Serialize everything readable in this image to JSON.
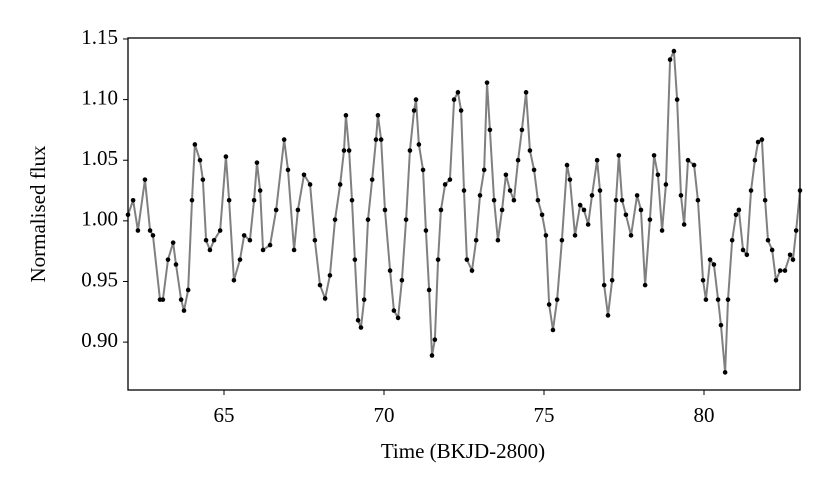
{
  "chart_data": {
    "type": "line",
    "xlabel": "Time (BKJD-2800)",
    "ylabel": "Normalised flux",
    "line_color": "#808080",
    "marker_color": "#000000",
    "xlim": [
      62.0,
      83.0
    ],
    "ylim": [
      0.8605,
      1.1508
    ],
    "xticks": [
      65,
      70,
      75,
      80
    ],
    "yticks": [
      {
        "value": 0.9,
        "label": "0.90"
      },
      0.95,
      {
        "value": 1.0,
        "label": "1.00"
      },
      1.05,
      {
        "value": 1.1,
        "label": "1.10"
      },
      1.15
    ],
    "x": [
      62.0,
      62.16,
      62.31,
      62.53,
      62.69,
      62.78,
      63.0,
      63.09,
      63.25,
      63.41,
      63.5,
      63.66,
      63.75,
      63.88,
      64.0,
      64.09,
      64.25,
      64.34,
      64.44,
      64.56,
      64.69,
      64.88,
      65.06,
      65.16,
      65.31,
      65.5,
      65.63,
      65.81,
      65.94,
      66.03,
      66.13,
      66.22,
      66.44,
      66.63,
      66.88,
      67.0,
      67.19,
      67.31,
      67.5,
      67.69,
      67.84,
      68.0,
      68.16,
      68.31,
      68.47,
      68.63,
      68.75,
      68.81,
      68.91,
      69.0,
      69.09,
      69.19,
      69.28,
      69.38,
      69.5,
      69.63,
      69.75,
      69.81,
      69.91,
      70.03,
      70.19,
      70.31,
      70.44,
      70.56,
      70.69,
      70.81,
      70.94,
      71.0,
      71.09,
      71.22,
      71.31,
      71.41,
      71.5,
      71.59,
      71.69,
      71.78,
      71.91,
      72.06,
      72.19,
      72.31,
      72.41,
      72.5,
      72.59,
      72.75,
      72.88,
      73.0,
      73.13,
      73.22,
      73.31,
      73.44,
      73.56,
      73.69,
      73.81,
      73.94,
      74.06,
      74.19,
      74.31,
      74.44,
      74.56,
      74.69,
      74.81,
      74.94,
      75.06,
      75.16,
      75.28,
      75.41,
      75.56,
      75.72,
      75.81,
      75.97,
      76.13,
      76.25,
      76.38,
      76.5,
      76.66,
      76.75,
      76.88,
      77.0,
      77.13,
      77.25,
      77.34,
      77.44,
      77.56,
      77.72,
      77.91,
      78.03,
      78.16,
      78.31,
      78.44,
      78.56,
      78.69,
      78.81,
      78.94,
      79.06,
      79.16,
      79.28,
      79.38,
      79.5,
      79.69,
      79.81,
      79.97,
      80.06,
      80.19,
      80.31,
      80.44,
      80.53,
      80.66,
      80.75,
      80.88,
      81.0,
      81.09,
      81.22,
      81.34,
      81.47,
      81.59,
      81.69,
      81.81,
      81.91,
      82.0,
      82.13,
      82.25,
      82.38,
      82.53,
      82.69,
      82.78,
      82.88,
      83.0
    ],
    "values": [
      1.005,
      1.017,
      0.992,
      1.034,
      0.992,
      0.988,
      0.935,
      0.935,
      0.968,
      0.982,
      0.964,
      0.935,
      0.926,
      0.943,
      1.017,
      1.063,
      1.05,
      1.034,
      0.984,
      0.976,
      0.984,
      0.992,
      1.053,
      1.017,
      0.951,
      0.968,
      0.988,
      0.984,
      1.017,
      1.048,
      1.025,
      0.976,
      0.98,
      1.009,
      1.067,
      1.042,
      0.976,
      1.009,
      1.038,
      1.03,
      0.984,
      0.947,
      0.936,
      0.955,
      1.001,
      1.03,
      1.058,
      1.087,
      1.058,
      1.017,
      0.968,
      0.918,
      0.912,
      0.935,
      1.001,
      1.034,
      1.067,
      1.087,
      1.067,
      1.009,
      0.959,
      0.926,
      0.92,
      0.951,
      1.001,
      1.058,
      1.091,
      1.1,
      1.063,
      1.042,
      0.992,
      0.943,
      0.889,
      0.902,
      0.968,
      1.009,
      1.03,
      1.034,
      1.1,
      1.106,
      1.091,
      1.025,
      0.968,
      0.959,
      0.984,
      1.021,
      1.042,
      1.114,
      1.075,
      1.017,
      0.984,
      1.009,
      1.038,
      1.025,
      1.017,
      1.05,
      1.075,
      1.106,
      1.058,
      1.042,
      1.017,
      1.005,
      0.988,
      0.931,
      0.91,
      0.935,
      0.984,
      1.046,
      1.034,
      0.988,
      1.013,
      1.009,
      0.997,
      1.021,
      1.05,
      1.025,
      0.947,
      0.922,
      0.951,
      1.017,
      1.054,
      1.017,
      1.005,
      0.988,
      1.021,
      1.009,
      0.947,
      1.001,
      1.054,
      1.038,
      0.992,
      1.03,
      1.133,
      1.14,
      1.1,
      1.021,
      0.997,
      1.05,
      1.046,
      1.017,
      0.951,
      0.935,
      0.968,
      0.964,
      0.935,
      0.914,
      0.875,
      0.935,
      0.984,
      1.005,
      1.009,
      0.976,
      0.972,
      1.025,
      1.05,
      1.065,
      1.067,
      1.017,
      0.984,
      0.976,
      0.951,
      0.959,
      0.959,
      0.972,
      0.968,
      0.992,
      1.025
    ]
  }
}
